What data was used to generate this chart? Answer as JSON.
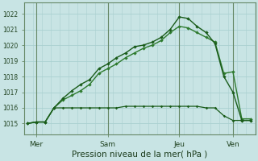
{
  "title": "Pression niveau de la mer( hPa )",
  "bg_color": "#c8e4e4",
  "grid_color": "#aad0d0",
  "line_color_dark": "#1a5c1a",
  "line_color_mid": "#2d7a2d",
  "line_color_light": "#3a8a3a",
  "ylim": [
    1014.3,
    1022.7
  ],
  "yticks": [
    1015,
    1016,
    1017,
    1018,
    1019,
    1020,
    1021,
    1022
  ],
  "day_labels": [
    "Mer",
    "Sam",
    "Jeu",
    "Ven"
  ],
  "day_positions": [
    0.33,
    3.0,
    5.67,
    7.67
  ],
  "xlim": [
    -0.1,
    8.5
  ],
  "series1": {
    "x": [
      0.0,
      0.33,
      0.67,
      1.0,
      1.33,
      1.67,
      2.0,
      2.33,
      2.67,
      3.0,
      3.33,
      3.67,
      4.0,
      4.33,
      4.67,
      5.0,
      5.33,
      5.67,
      6.0,
      6.33,
      6.67,
      7.0,
      7.33,
      7.67,
      8.0,
      8.33
    ],
    "y": [
      1015.0,
      1015.1,
      1015.1,
      1016.0,
      1016.6,
      1017.1,
      1017.5,
      1017.8,
      1018.5,
      1018.8,
      1019.2,
      1019.5,
      1019.9,
      1020.0,
      1020.2,
      1020.5,
      1021.0,
      1021.8,
      1021.7,
      1021.2,
      1020.8,
      1020.1,
      1018.0,
      1017.0,
      1015.2,
      1015.2
    ]
  },
  "series2": {
    "x": [
      0.0,
      0.33,
      0.67,
      1.0,
      1.33,
      1.67,
      2.0,
      2.33,
      2.67,
      3.0,
      3.33,
      3.67,
      4.0,
      4.33,
      4.67,
      5.0,
      5.33,
      5.67,
      6.0,
      6.33,
      6.67,
      7.0,
      7.33,
      7.67,
      8.0,
      8.33
    ],
    "y": [
      1015.0,
      1015.1,
      1015.1,
      1016.0,
      1016.5,
      1016.8,
      1017.1,
      1017.5,
      1018.2,
      1018.5,
      1018.8,
      1019.2,
      1019.5,
      1019.8,
      1020.0,
      1020.3,
      1020.8,
      1021.2,
      1021.1,
      1020.8,
      1020.5,
      1020.2,
      1018.2,
      1018.3,
      1015.3,
      1015.3
    ]
  },
  "series3": {
    "x": [
      0.0,
      0.33,
      0.67,
      1.0,
      1.33,
      1.67,
      2.0,
      2.33,
      2.67,
      3.0,
      3.33,
      3.67,
      4.0,
      4.33,
      4.67,
      5.0,
      5.33,
      5.67,
      6.0,
      6.33,
      6.67,
      7.0,
      7.33,
      7.67,
      8.0,
      8.33
    ],
    "y": [
      1015.0,
      1015.1,
      1015.1,
      1016.0,
      1016.0,
      1016.0,
      1016.0,
      1016.0,
      1016.0,
      1016.0,
      1016.0,
      1016.1,
      1016.1,
      1016.1,
      1016.1,
      1016.1,
      1016.1,
      1016.1,
      1016.1,
      1016.1,
      1016.0,
      1016.0,
      1015.5,
      1015.2,
      1015.2,
      1015.2
    ]
  },
  "vgrid_step": 0.33,
  "xlabel_fontsize": 7.5,
  "ytick_fontsize": 5.5,
  "xtick_fontsize": 6.5
}
